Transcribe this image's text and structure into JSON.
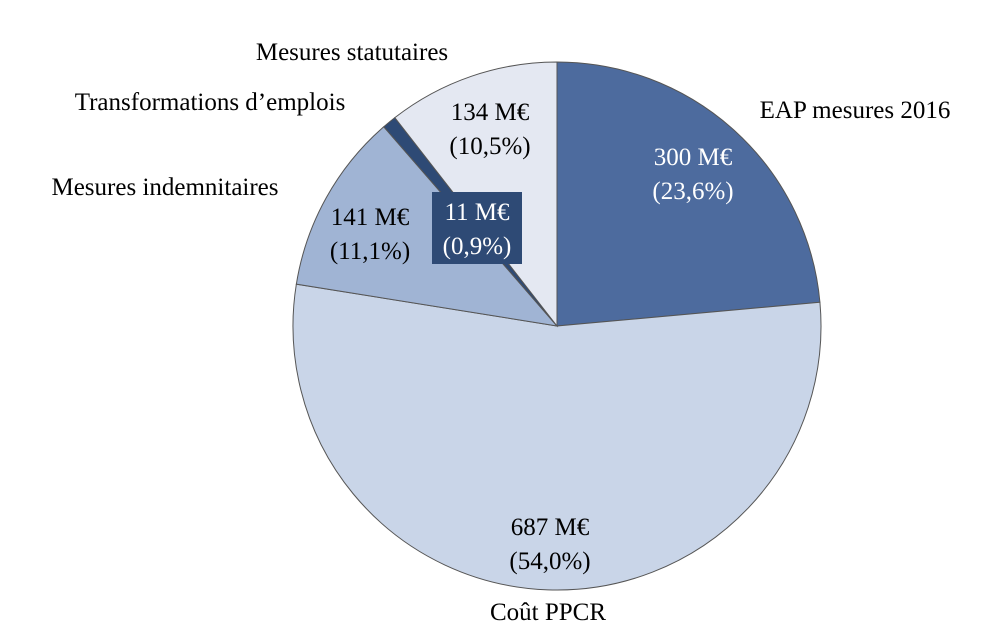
{
  "chart_data": {
    "type": "pie",
    "title": "",
    "start": "top",
    "direction": "clockwise",
    "slices": [
      {
        "label": "EAP mesures 2016",
        "value": 300,
        "value_label": "300 M€",
        "percent_label": "(23,6%)",
        "percent": 23.6,
        "color": "#4d6b9e",
        "text_color": "#ffffff"
      },
      {
        "label": "Coût PPCR",
        "value": 687,
        "value_label": "687 M€",
        "percent_label": "(54,0%)",
        "percent": 54.0,
        "color": "#c9d5e8",
        "text_color": "#000000"
      },
      {
        "label": "Mesures indemnitaires",
        "value": 141,
        "value_label": "141 M€",
        "percent_label": "(11,1%)",
        "percent": 11.1,
        "color": "#a0b4d4",
        "text_color": "#000000"
      },
      {
        "label": "Transformations d’emplois",
        "value": 11,
        "value_label": "11 M€",
        "percent_label": "(0,9%)",
        "percent": 0.9,
        "color": "#2e4a75",
        "text_color": "#ffffff"
      },
      {
        "label": "Mesures statutaires",
        "value": 134,
        "value_label": "134 M€",
        "percent_label": "(10,5%)",
        "percent": 10.5,
        "color": "#e4e8f2",
        "text_color": "#000000"
      }
    ]
  }
}
